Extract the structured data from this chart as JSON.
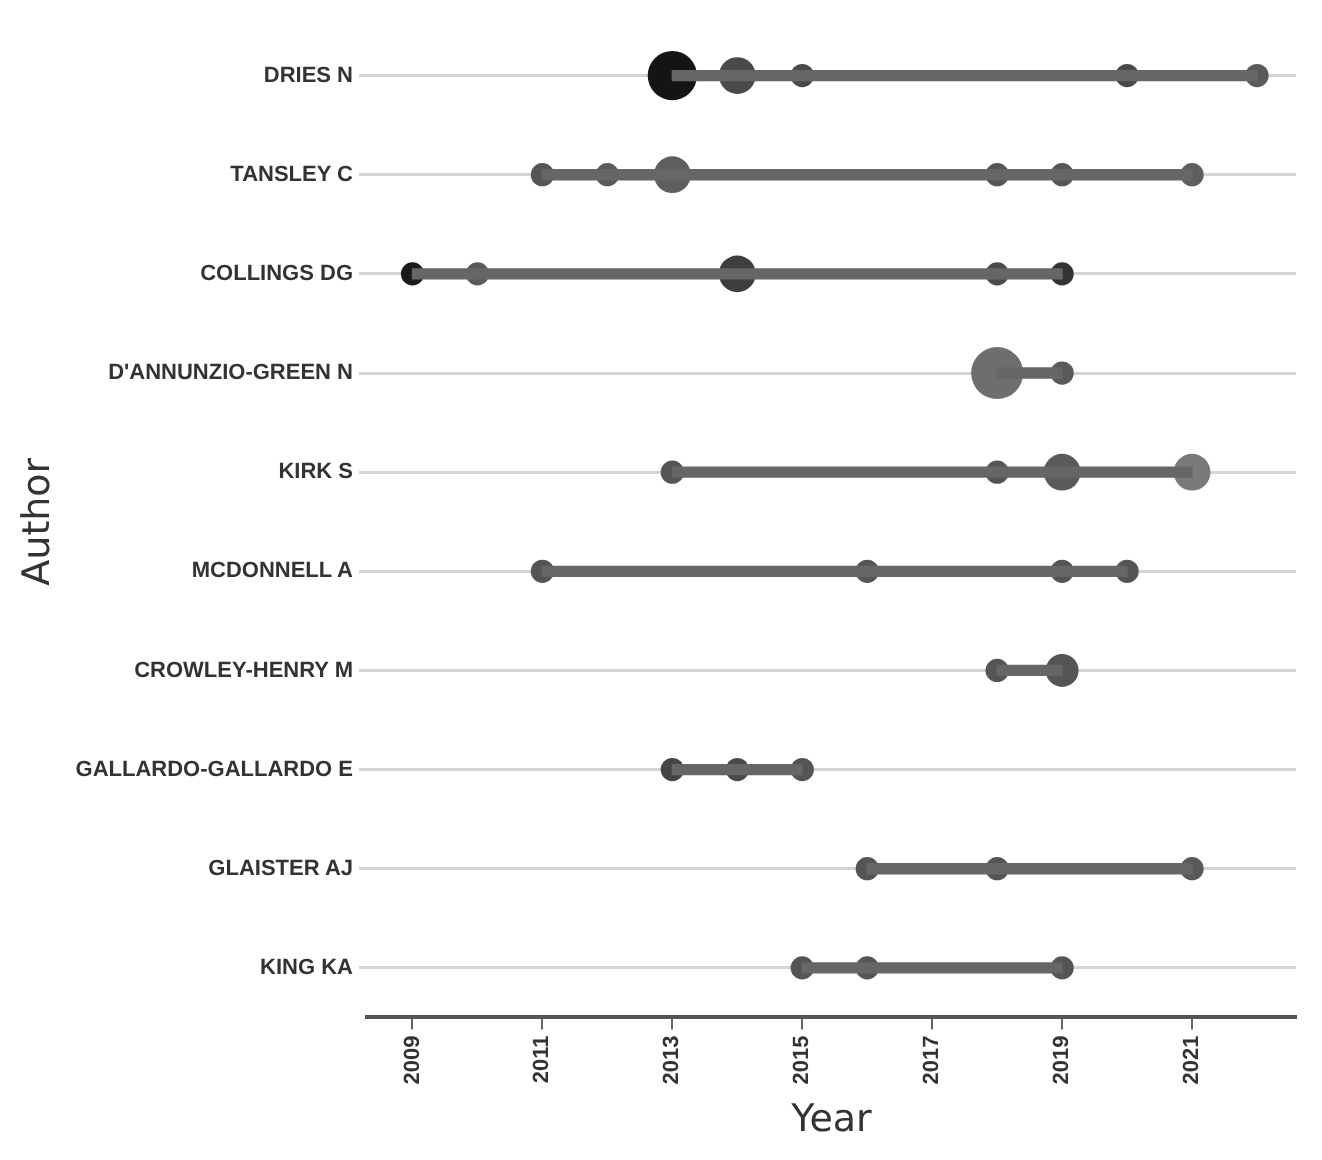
{
  "chart_data": {
    "type": "bubble",
    "orientation": "horizontal",
    "xlabel": "Year",
    "ylabel": "Author",
    "xlim": [
      2008.3,
      2022.6
    ],
    "xticks": [
      2009,
      2011,
      2013,
      2015,
      2017,
      2019,
      2021
    ],
    "grid": "y",
    "categories": [
      "DRIES N",
      "TANSLEY C",
      "COLLINGS DG",
      "D'ANNUNZIO-GREEN N",
      "KIRK S",
      "MCDONNELL A",
      "CROWLEY-HENRY M",
      "GALLARDO-GALLARDO E",
      "GLAISTER AJ",
      "KING KA"
    ],
    "series": [
      {
        "type": "bar",
        "base": [
          2013,
          2011,
          2009,
          2018,
          2013,
          2011,
          2018,
          2013,
          2016,
          2015
        ],
        "values": [
          9,
          10,
          10,
          1,
          8,
          9,
          1,
          2,
          5,
          4
        ],
        "color": "#666666"
      },
      {
        "values": [
          2013,
          2011,
          2009,
          2018,
          2013,
          2011,
          2018,
          2013,
          2016,
          2015
        ],
        "sizes": [
          0.9,
          0.2,
          0.2,
          1,
          0.2,
          0.2,
          0.2,
          0.2,
          0.2,
          0.2
        ],
        "colors": [
          "#141414",
          "#555555",
          "#1a1a1a",
          "#6e6e6e",
          "#555555",
          "#555555",
          "#555555",
          "#444444",
          "#555555",
          "#555555"
        ]
      },
      {
        "values": [
          2014,
          2012,
          2010,
          2019,
          2018,
          2016,
          2019,
          2014,
          2018,
          2016
        ],
        "sizes": [
          0.5,
          0.2,
          0.2,
          0.2,
          0.2,
          0.2,
          0.4,
          0.2,
          0.2,
          0.2
        ],
        "colors": [
          "#4a4a4a",
          "#5a5a5a",
          "#5a5a5a",
          "#5a5a5a",
          "#555555",
          "#555555",
          "#555555",
          "#4a4a4a",
          "#555555",
          "#555555"
        ]
      },
      {
        "values": [
          2015,
          2013,
          2014,
          null,
          2019,
          2019,
          null,
          2015,
          2021,
          2019
        ],
        "sizes": [
          0.2,
          0.5,
          0.5,
          null,
          0.5,
          0.2,
          null,
          0.2,
          0.2,
          0.2
        ],
        "colors": [
          "#4a4a4a",
          "#5e5e5e",
          "#3e3e3e",
          null,
          "#5a5a5a",
          "#555555",
          null,
          "#555555",
          "#5a5a5a",
          "#555555"
        ]
      },
      {
        "values": [
          2020,
          2018,
          2018,
          null,
          2021,
          2020,
          null,
          null,
          null,
          null
        ],
        "sizes": [
          0.2,
          0.2,
          0.2,
          null,
          0.5,
          0.2,
          null,
          null,
          null,
          null
        ],
        "colors": [
          "#4a4a4a",
          "#555555",
          "#4a4a4a",
          null,
          "#7a7a7a",
          "#555555",
          null,
          null,
          null,
          null
        ]
      },
      {
        "values": [
          2022,
          2019,
          2019,
          null,
          null,
          null,
          null,
          null,
          null,
          null
        ],
        "sizes": [
          0.2,
          0.2,
          0.2,
          null,
          null,
          null,
          null,
          null,
          null,
          null
        ],
        "colors": [
          "#5a5a5a",
          "#555555",
          "#333333",
          null,
          null,
          null,
          null,
          null,
          null,
          null
        ]
      },
      {
        "values": [
          null,
          2021,
          null,
          null,
          null,
          null,
          null,
          null,
          null,
          null
        ],
        "sizes": [
          null,
          0.2,
          null,
          null,
          null,
          null,
          null,
          null,
          null,
          null
        ],
        "colors": [
          null,
          "#5e5e5e",
          null,
          null,
          null,
          null,
          null,
          null,
          null,
          null
        ]
      }
    ]
  }
}
